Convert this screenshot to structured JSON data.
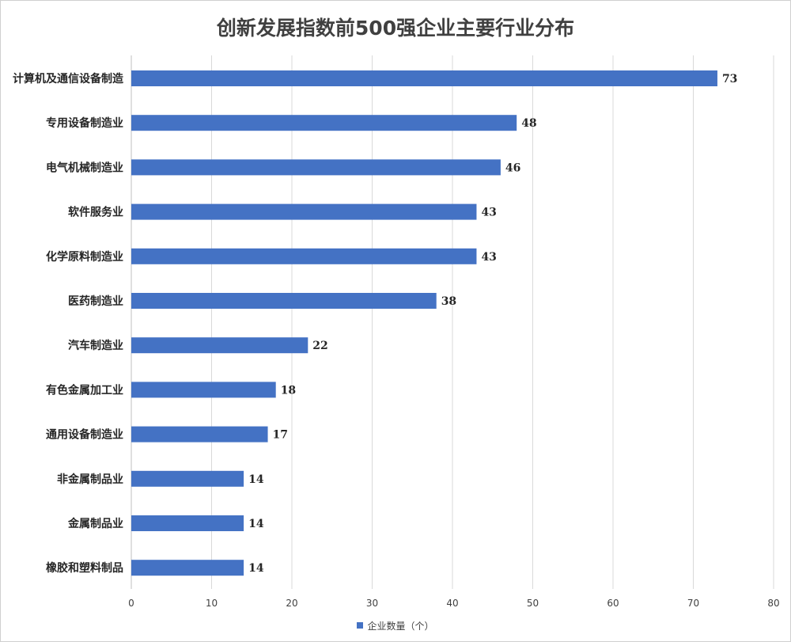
{
  "chart_data": {
    "type": "bar",
    "orientation": "horizontal",
    "title": "创新发展指数前500强企业主要行业分布",
    "categories": [
      "计算机及通信设备制造",
      "专用设备制造业",
      "电气机械制造业",
      "软件服务业",
      "化学原料制造业",
      "医药制造业",
      "汽车制造业",
      "有色金属加工业",
      "通用设备制造业",
      "非金属制品业",
      "金属制品业",
      "橡胶和塑料制品"
    ],
    "series": [
      {
        "name": "企业数量（个）",
        "values": [
          73,
          48,
          46,
          43,
          43,
          38,
          22,
          18,
          17,
          14,
          14,
          14
        ],
        "color": "#4472C4"
      }
    ],
    "xlim": [
      0,
      80
    ],
    "xticks": [
      0,
      10,
      20,
      30,
      40,
      50,
      60,
      70,
      80
    ],
    "grid": true,
    "legend_position": "bottom",
    "data_labels": true
  }
}
